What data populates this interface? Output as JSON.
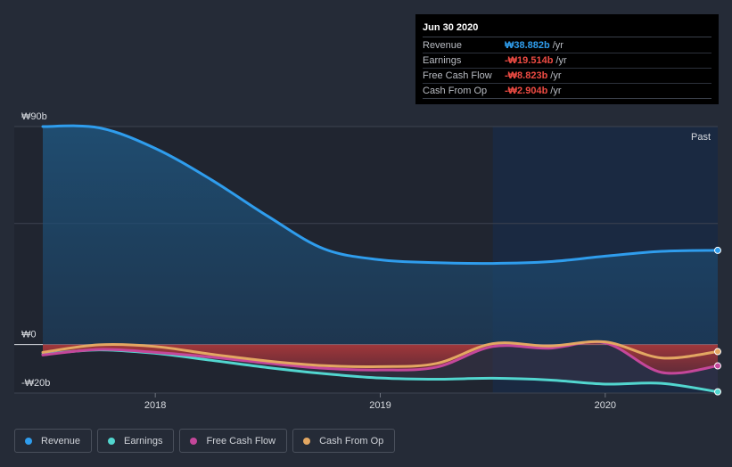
{
  "tooltip": {
    "date": "Jun 30 2020",
    "rows": [
      {
        "label": "Revenue",
        "value": "₩38.882b",
        "unit": "/yr",
        "color": "#2f9ded"
      },
      {
        "label": "Earnings",
        "value": "-₩19.514b",
        "unit": "/yr",
        "color": "#ee4b43"
      },
      {
        "label": "Free Cash Flow",
        "value": "-₩8.823b",
        "unit": "/yr",
        "color": "#ee4b43"
      },
      {
        "label": "Cash From Op",
        "value": "-₩2.904b",
        "unit": "/yr",
        "color": "#ee4b43"
      }
    ]
  },
  "past_label": "Past",
  "legend": [
    {
      "label": "Revenue",
      "color": "#2f9ded"
    },
    {
      "label": "Earnings",
      "color": "#52d6cf"
    },
    {
      "label": "Free Cash Flow",
      "color": "#c4479a"
    },
    {
      "label": "Cash From Op",
      "color": "#e3a762"
    }
  ],
  "chart_data": {
    "type": "line",
    "y_ticks": [
      {
        "label": "₩90b",
        "value": 90
      },
      {
        "label": "₩0",
        "value": 0
      },
      {
        "label": "-₩20b",
        "value": -20
      }
    ],
    "x_ticks": [
      {
        "label": "2018",
        "value": 2018.0
      },
      {
        "label": "2019",
        "value": 2019.0
      },
      {
        "label": "2020",
        "value": 2020.0
      }
    ],
    "xlim": [
      2017.5,
      2020.5
    ],
    "ylim": [
      -20,
      90
    ],
    "past_region_start": 2019.5,
    "series": [
      {
        "name": "Revenue",
        "color": "#2f9ded",
        "points": [
          [
            2017.5,
            90
          ],
          [
            2017.75,
            89.5
          ],
          [
            2018.0,
            81
          ],
          [
            2018.25,
            68
          ],
          [
            2018.5,
            53
          ],
          [
            2018.75,
            39.5
          ],
          [
            2019.0,
            35
          ],
          [
            2019.25,
            33.8
          ],
          [
            2019.5,
            33.5
          ],
          [
            2019.75,
            34.2
          ],
          [
            2020.0,
            36.5
          ],
          [
            2020.25,
            38.5
          ],
          [
            2020.5,
            38.9
          ]
        ]
      },
      {
        "name": "Earnings",
        "color": "#52d6cf",
        "points": [
          [
            2017.5,
            -4
          ],
          [
            2017.75,
            -2.2
          ],
          [
            2018.0,
            -3.6
          ],
          [
            2018.25,
            -6.5
          ],
          [
            2018.5,
            -9.5
          ],
          [
            2018.75,
            -12
          ],
          [
            2019.0,
            -13.8
          ],
          [
            2019.25,
            -14.3
          ],
          [
            2019.5,
            -13.9
          ],
          [
            2019.75,
            -14.6
          ],
          [
            2020.0,
            -16.3
          ],
          [
            2020.25,
            -16
          ],
          [
            2020.5,
            -19.5
          ]
        ]
      },
      {
        "name": "Free Cash Flow",
        "color": "#c4479a",
        "points": [
          [
            2017.5,
            -4.3
          ],
          [
            2017.75,
            -2
          ],
          [
            2018.0,
            -3.2
          ],
          [
            2018.25,
            -5.2
          ],
          [
            2018.5,
            -7.7
          ],
          [
            2018.75,
            -9.8
          ],
          [
            2019.0,
            -10.5
          ],
          [
            2019.25,
            -9.3
          ],
          [
            2019.5,
            -0.8
          ],
          [
            2019.75,
            -1.5
          ],
          [
            2020.0,
            0.7
          ],
          [
            2020.25,
            -11.5
          ],
          [
            2020.5,
            -8.8
          ]
        ]
      },
      {
        "name": "Cash From Op",
        "color": "#e3a762",
        "points": [
          [
            2017.5,
            -3.2
          ],
          [
            2017.75,
            -0.1
          ],
          [
            2018.0,
            -0.8
          ],
          [
            2018.25,
            -4
          ],
          [
            2018.5,
            -6.8
          ],
          [
            2018.75,
            -8.7
          ],
          [
            2019.0,
            -9.1
          ],
          [
            2019.25,
            -7.8
          ],
          [
            2019.5,
            0.4
          ],
          [
            2019.75,
            -0.6
          ],
          [
            2020.0,
            1.1
          ],
          [
            2020.25,
            -5.5
          ],
          [
            2020.5,
            -2.9
          ]
        ]
      }
    ]
  }
}
